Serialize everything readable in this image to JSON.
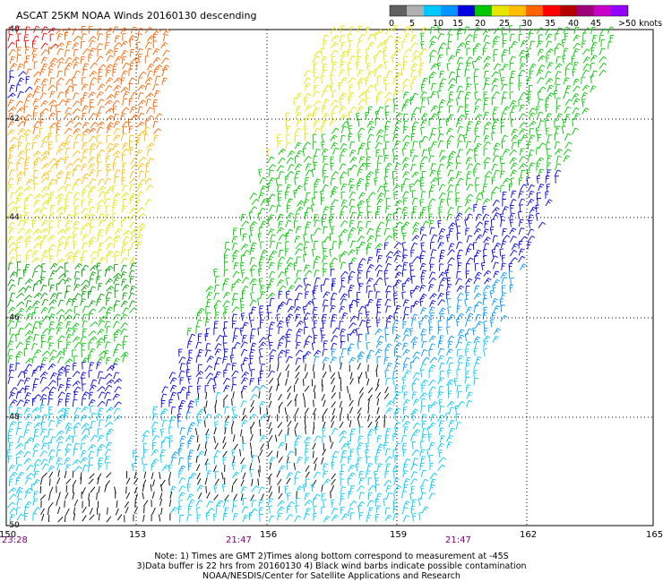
{
  "title": "ASCAT 25KM NOAA Winds 20160130 descending",
  "legend": {
    "colors": [
      "#606060",
      "#b0b0b0",
      "#00c8ff",
      "#0096ff",
      "#0000e0",
      "#00c800",
      "#e6e600",
      "#ffbe00",
      "#ff6400",
      "#ff0000",
      "#b40000",
      "#a00078",
      "#c800c8",
      "#9600ff"
    ],
    "labels": [
      "0",
      "5",
      "10",
      "15",
      "20",
      "25",
      "30",
      "35",
      "40",
      "45",
      ">50 knots"
    ]
  },
  "latitude_labels": [
    "-40",
    "-42",
    "-44",
    "-46",
    "-48",
    "-50"
  ],
  "longitude_labels": [
    "150",
    "153",
    "156",
    "159",
    "162",
    "165"
  ],
  "times": [
    "23:28",
    "21:47",
    "21:47"
  ],
  "notes": [
    "Note: 1) Times are GMT 2)Times along bottom correspond to measurement at -45S",
    "3)Data buffer is 22 hrs from 20160130 4) Black wind barbs indicate possible contamination",
    "NOAA/NESDIS/Center for Satellite Applications and Research"
  ]
}
